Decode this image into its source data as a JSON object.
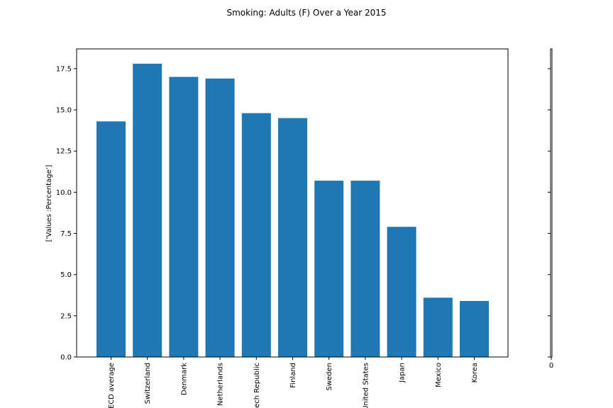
{
  "chart_data": {
    "type": "bar",
    "title": "Smoking: Adults (F) Over a Year 2015",
    "xlabel": "",
    "ylabel": "['Values :Percentage']",
    "categories": [
      "OECD average",
      "Switzerland",
      "Denmark",
      "Netherlands",
      "Czech Republic",
      "Finland",
      "Sweden",
      "United States",
      "Japan",
      "Mexico",
      "Korea"
    ],
    "values": [
      14.3,
      17.8,
      17.0,
      16.9,
      14.8,
      14.5,
      10.7,
      10.7,
      7.9,
      3.6,
      3.4
    ],
    "ylim": [
      0,
      18.7
    ],
    "yticks": [
      "0.0",
      "2.5",
      "5.0",
      "7.5",
      "10.0",
      "12.5",
      "15.0",
      "17.5"
    ],
    "grid": false,
    "bar_color": "#1f77b4",
    "secondary_axis_tick": "0"
  }
}
